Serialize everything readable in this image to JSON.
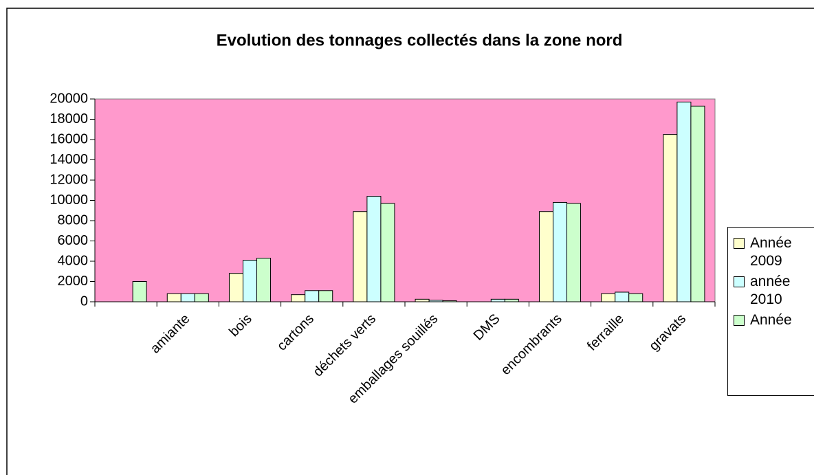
{
  "chart_data": {
    "type": "bar",
    "title": "Evolution des tonnages collectés dans la zone nord",
    "categories": [
      null,
      "amiante",
      "bois",
      "cartons",
      "déchets verts",
      "emballages souillés",
      "DMS",
      "encombrants",
      "ferraille",
      "gravats"
    ],
    "series": [
      {
        "name": "Année 2009",
        "color": "#ffffcc",
        "values": [
          null,
          800,
          2800,
          700,
          8900,
          250,
          null,
          8900,
          800,
          16500
        ]
      },
      {
        "name": "année 2010",
        "color": "#ccffff",
        "values": [
          null,
          800,
          4100,
          1100,
          10400,
          150,
          250,
          9800,
          950,
          19700
        ]
      },
      {
        "name": "Année",
        "color": "#ccffcc",
        "values": [
          2000,
          800,
          4300,
          1100,
          9700,
          100,
          250,
          9700,
          800,
          19300
        ]
      }
    ],
    "ylim": [
      0,
      20000
    ],
    "yticks": [
      0,
      2000,
      4000,
      6000,
      8000,
      10000,
      12000,
      14000,
      16000,
      18000,
      20000
    ],
    "plot_background": "#ff99cc"
  }
}
